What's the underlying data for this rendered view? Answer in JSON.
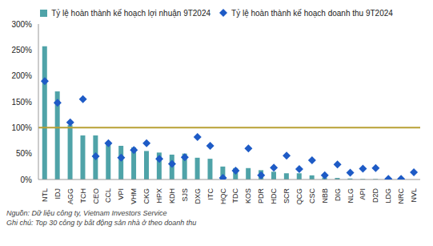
{
  "chart_data": {
    "type": "bar",
    "categories": [
      "NTL",
      "IDJ",
      "AGG",
      "TCH",
      "CEO",
      "CCL",
      "VPI",
      "VHM",
      "CKG",
      "HPX",
      "KDH",
      "SJS",
      "DXG",
      "ITC",
      "HQC",
      "TDC",
      "KOS",
      "PDR",
      "HDC",
      "SCR",
      "QCG",
      "CSC",
      "NBB",
      "DIG",
      "NLG",
      "API",
      "D2D",
      "LDG",
      "NRC",
      "NVL"
    ],
    "series": [
      {
        "name": "Tỷ lệ hoàn thành kế hoạch lợi nhuận 9T2024",
        "type": "bar",
        "color": "#4fa3a8",
        "values": [
          257,
          170,
          105,
          85,
          85,
          73,
          65,
          62,
          55,
          52,
          48,
          50,
          42,
          40,
          25,
          22,
          22,
          18,
          15,
          12,
          12,
          8,
          4,
          3,
          2,
          1,
          1,
          0,
          0,
          0
        ]
      },
      {
        "name": "Tỷ lệ hoàn thành kế hoạch doanh thu 9T2024",
        "type": "scatter",
        "marker": "diamond",
        "color": "#1e5bc6",
        "values": [
          190,
          148,
          110,
          155,
          45,
          70,
          42,
          57,
          70,
          40,
          30,
          43,
          82,
          65,
          3,
          17,
          60,
          8,
          23,
          46,
          20,
          37,
          8,
          29,
          13,
          21,
          22,
          1,
          1,
          14
        ]
      }
    ],
    "ylim": [
      0,
      300
    ],
    "yticks": [
      {
        "value": 0,
        "label": "0%"
      },
      {
        "value": 50,
        "label": "50%"
      },
      {
        "value": 100,
        "label": "100%"
      },
      {
        "value": 150,
        "label": "150%"
      },
      {
        "value": 200,
        "label": "200%"
      },
      {
        "value": 250,
        "label": "250%"
      },
      {
        "value": 300,
        "label": "300%"
      }
    ],
    "reference_line": {
      "value": 100,
      "color": "#b8a034"
    },
    "grid": false,
    "legend": "top",
    "annotations": [
      "Nguồn: Dữ liệu công ty, Vietnam Investors Service",
      "Ghi chú: Top 30 công ty bất động sản nhà ở theo doanh thu"
    ]
  }
}
